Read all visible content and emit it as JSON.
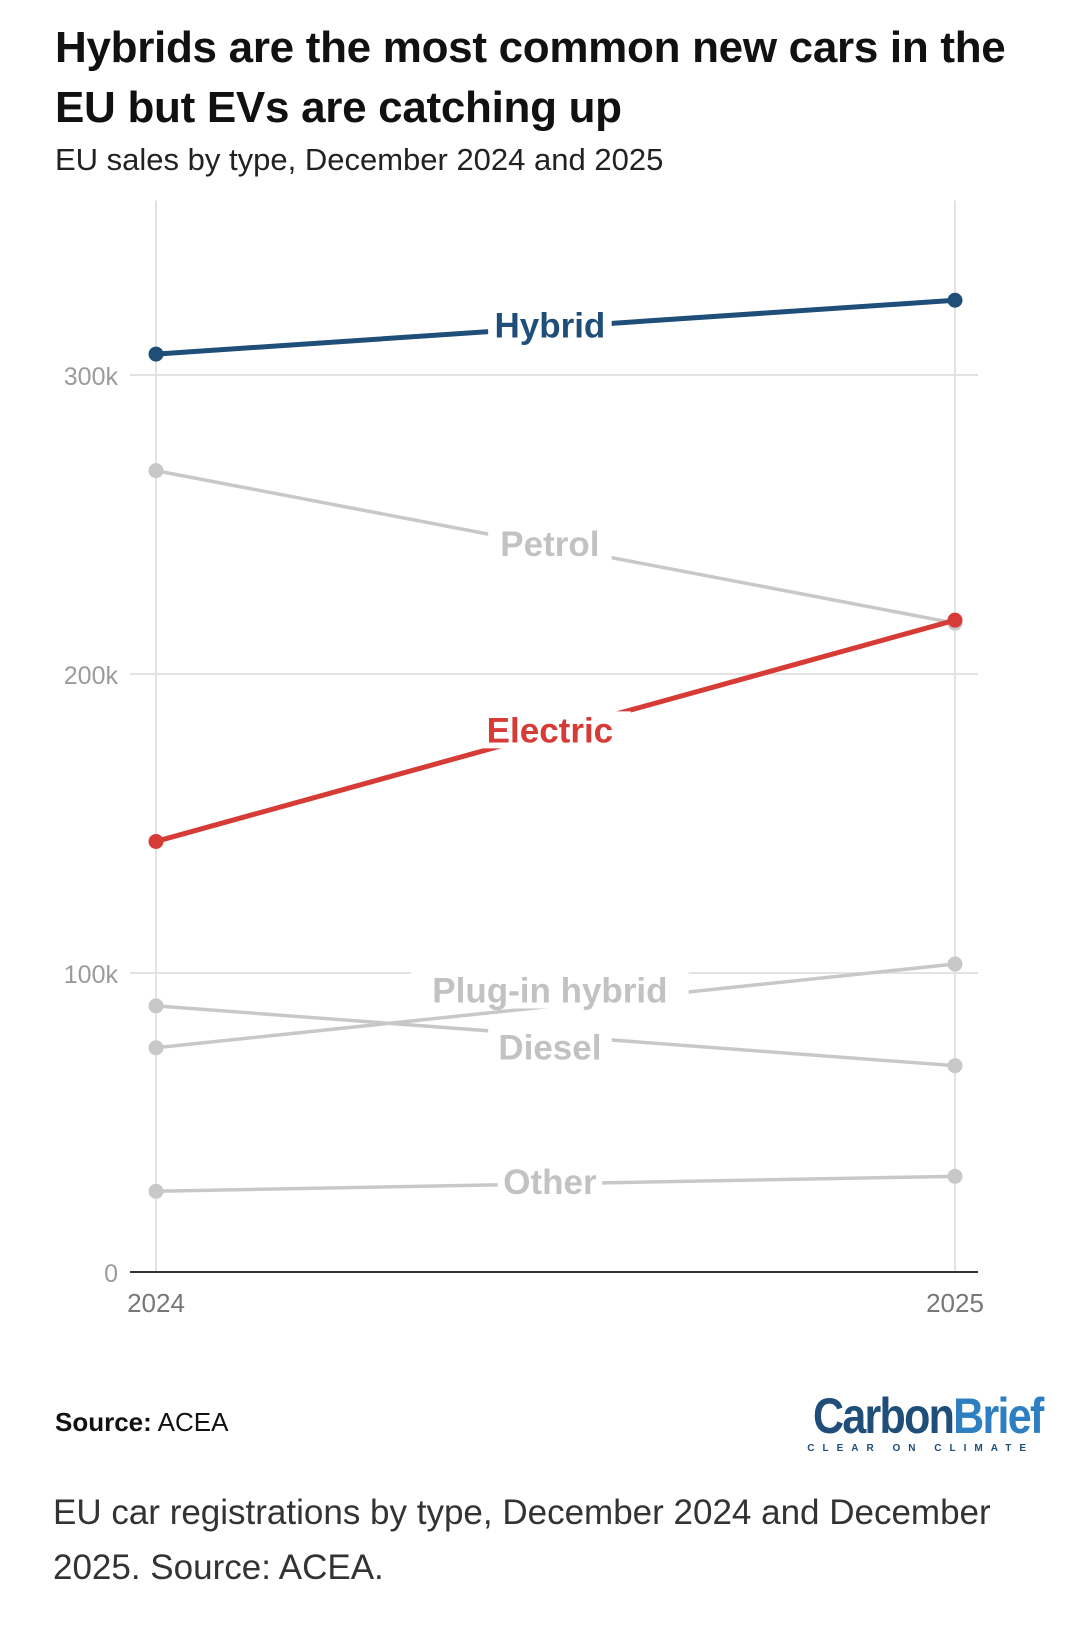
{
  "title": "Hybrids are the most common new cars in the EU but EVs are catching up",
  "subtitle": "EU sales by type, December 2024 and 2025",
  "source": {
    "label": "Source:",
    "value": "ACEA"
  },
  "logo": {
    "word1": "Carbon",
    "word2": "Brief",
    "tagline": "CLEAR ON CLIMATE"
  },
  "caption": "EU car registrations by type, December 2024 and December 2025. Source: ACEA.",
  "colors": {
    "hybrid": "#1f4e79",
    "electric": "#d63b36",
    "muted": "#c8c8c8",
    "muted_label": "#c2c2c2",
    "grid": "#e3e3e3",
    "axis": "#333333",
    "tick_label": "#9b9b9b"
  },
  "chart_data": {
    "type": "line",
    "title": "Hybrids are the most common new cars in the EU but EVs are catching up",
    "subtitle": "EU sales by type, December 2024 and 2025",
    "x": [
      "2024",
      "2025"
    ],
    "ylim": [
      0,
      350000
    ],
    "yticks": [
      0,
      100000,
      200000,
      300000
    ],
    "ytick_labels": [
      "0",
      "100k",
      "200k",
      "300k"
    ],
    "grid": true,
    "series": [
      {
        "name": "Hybrid",
        "values": [
          307000,
          325000
        ],
        "color": "#1f4e79",
        "highlight": true
      },
      {
        "name": "Petrol",
        "values": [
          268000,
          217000
        ],
        "color": "#c8c8c8",
        "highlight": false
      },
      {
        "name": "Electric",
        "values": [
          144000,
          218000
        ],
        "color": "#d63b36",
        "highlight": true
      },
      {
        "name": "Plug-in hybrid",
        "values": [
          75000,
          103000
        ],
        "color": "#c8c8c8",
        "highlight": false
      },
      {
        "name": "Diesel",
        "values": [
          89000,
          69000
        ],
        "color": "#c8c8c8",
        "highlight": false
      },
      {
        "name": "Other",
        "values": [
          27000,
          32000
        ],
        "color": "#c8c8c8",
        "highlight": false
      }
    ]
  }
}
